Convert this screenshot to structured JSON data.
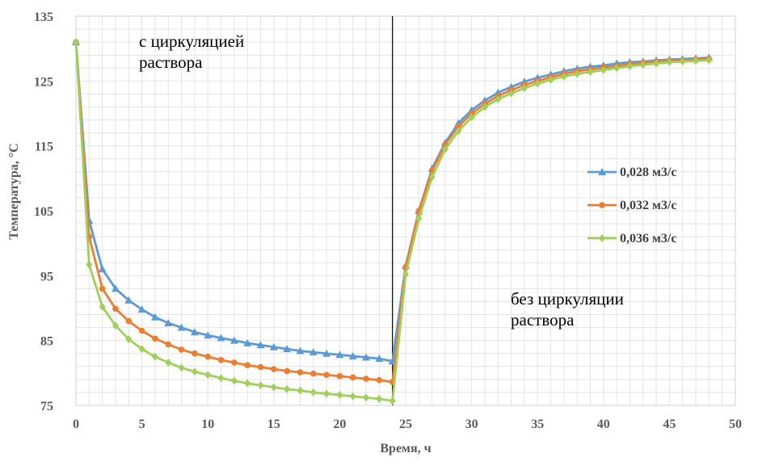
{
  "chart_data": {
    "type": "line",
    "xlabel": "Время, ч",
    "ylabel": "Температура, °С",
    "xlim": [
      0,
      50
    ],
    "ylim": [
      75,
      135
    ],
    "xticks": [
      "0",
      "5",
      "10",
      "15",
      "20",
      "25",
      "30",
      "35",
      "40",
      "45",
      "50"
    ],
    "yticks": [
      "75",
      "85",
      "95",
      "105",
      "115",
      "125",
      "135"
    ],
    "grid": true,
    "legend_position": "right",
    "annotations": [
      {
        "lines": [
          "с циркуляцией",
          "раствора"
        ]
      },
      {
        "lines": [
          "без циркуляции",
          "раствора"
        ]
      }
    ],
    "vertical_line_x": 24,
    "x": [
      0,
      1,
      2,
      3,
      4,
      5,
      6,
      7,
      8,
      9,
      10,
      11,
      12,
      13,
      14,
      15,
      16,
      17,
      18,
      19,
      20,
      21,
      22,
      23,
      24,
      25,
      26,
      27,
      28,
      29,
      30,
      31,
      32,
      33,
      34,
      35,
      36,
      37,
      38,
      39,
      40,
      41,
      42,
      43,
      44,
      45,
      46,
      47,
      48
    ],
    "series": [
      {
        "name": "0,028 м3/с",
        "color": "#5b9bd5",
        "marker": "triangle",
        "values": [
          131.0,
          103.5,
          96.0,
          93.0,
          91.2,
          89.8,
          88.6,
          87.7,
          87.0,
          86.3,
          85.8,
          85.4,
          85.0,
          84.6,
          84.3,
          84.0,
          83.7,
          83.4,
          83.2,
          83.0,
          82.8,
          82.6,
          82.4,
          82.2,
          81.8,
          96.5,
          105.0,
          111.5,
          115.5,
          118.5,
          120.5,
          122.0,
          123.2,
          124.1,
          124.9,
          125.5,
          126.0,
          126.5,
          126.9,
          127.2,
          127.4,
          127.7,
          127.9,
          128.0,
          128.2,
          128.3,
          128.4,
          128.5,
          128.6
        ]
      },
      {
        "name": "0,032 м3/с",
        "color": "#ed7d31",
        "marker": "circle",
        "values": [
          131.0,
          101.0,
          93.0,
          89.9,
          88.0,
          86.5,
          85.3,
          84.4,
          83.6,
          83.0,
          82.5,
          82.0,
          81.6,
          81.2,
          80.9,
          80.6,
          80.3,
          80.1,
          79.9,
          79.7,
          79.5,
          79.3,
          79.1,
          78.9,
          78.6,
          96.3,
          105.0,
          111.2,
          115.2,
          118.0,
          120.0,
          121.5,
          122.7,
          123.6,
          124.4,
          125.0,
          125.6,
          126.1,
          126.5,
          126.8,
          127.1,
          127.3,
          127.6,
          127.8,
          128.0,
          128.1,
          128.2,
          128.3,
          128.4
        ]
      },
      {
        "name": "0,036 м3/с",
        "color": "#9fd05a",
        "marker": "diamond",
        "values": [
          131.0,
          96.7,
          90.2,
          87.3,
          85.2,
          83.7,
          82.5,
          81.6,
          80.8,
          80.2,
          79.7,
          79.2,
          78.8,
          78.4,
          78.1,
          77.8,
          77.5,
          77.3,
          77.0,
          76.8,
          76.6,
          76.4,
          76.2,
          76.0,
          75.7,
          95.2,
          103.8,
          110.2,
          114.5,
          117.3,
          119.4,
          121.0,
          122.2,
          123.1,
          123.9,
          124.6,
          125.2,
          125.7,
          126.1,
          126.4,
          126.7,
          127.0,
          127.3,
          127.5,
          127.7,
          127.9,
          128.0,
          128.1,
          128.2
        ]
      }
    ]
  }
}
